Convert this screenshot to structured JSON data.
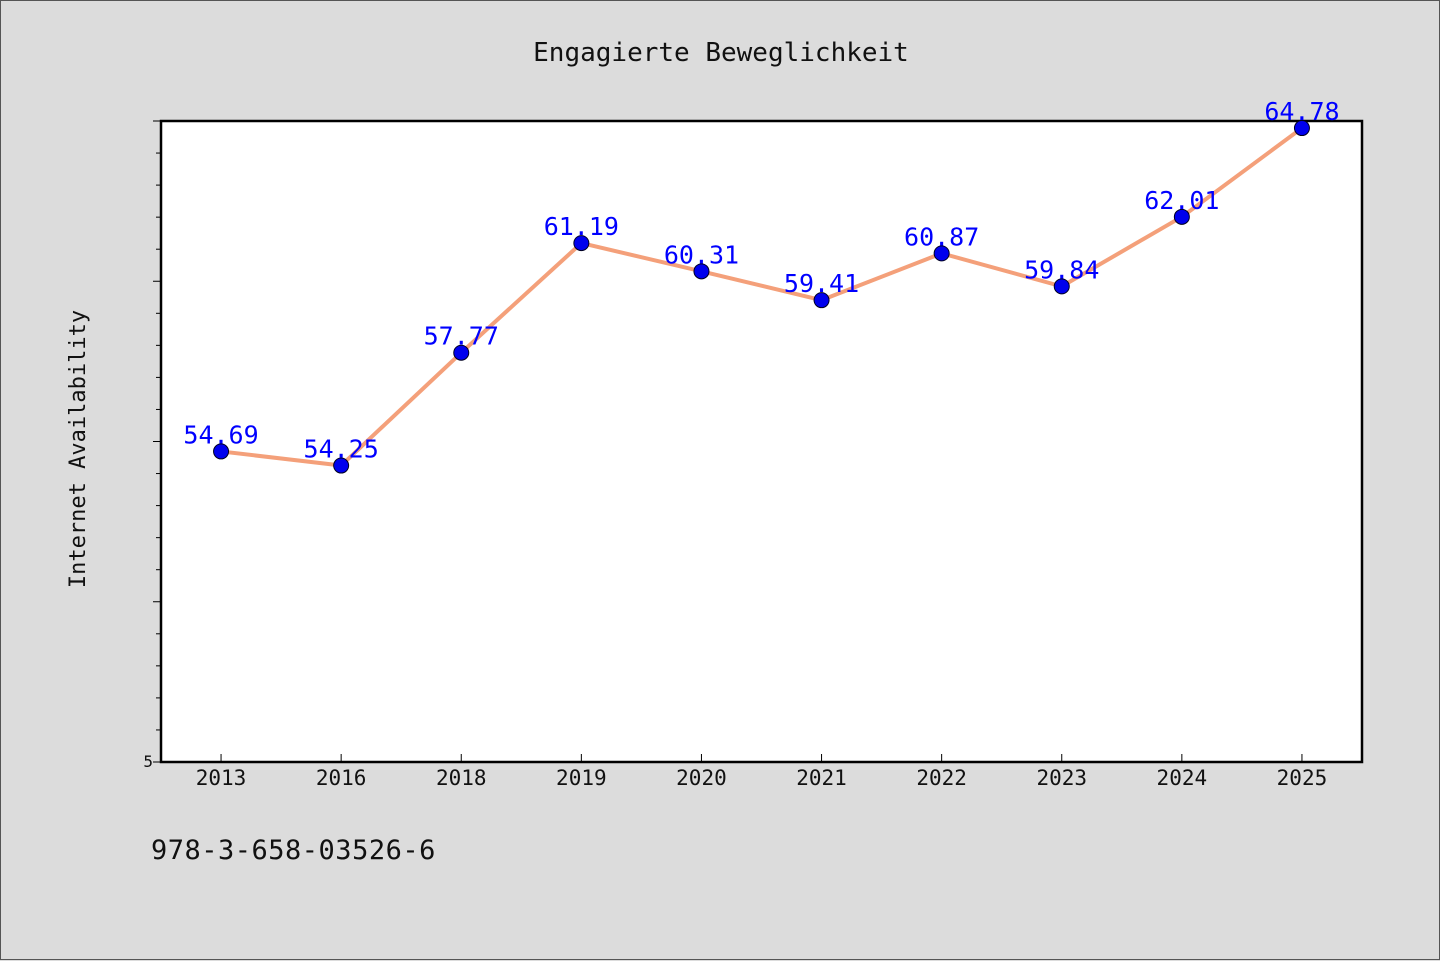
{
  "chart_data": {
    "type": "line",
    "title": "Engagierte Beweglichkeit",
    "xlabel": "",
    "ylabel": "Internet Availability",
    "categories": [
      "2013",
      "2016",
      "2018",
      "2019",
      "2020",
      "2021",
      "2022",
      "2023",
      "2024",
      "2025"
    ],
    "series": [
      {
        "values": [
          54.69,
          54.25,
          57.77,
          61.19,
          60.31,
          59.41,
          60.87,
          59.84,
          62.01,
          64.78
        ],
        "data_labels": [
          "54.69",
          "54.25",
          "57.77",
          "61.19",
          "60.31",
          "59.41",
          "60.87",
          "59.84",
          "62.01",
          "64.78"
        ]
      }
    ],
    "ylim": [
      45,
      65
    ],
    "y_tick_labels": [
      "5"
    ],
    "grid": false,
    "legend": "none",
    "colors": {
      "line": "#f4a07a",
      "marker": "#0000ee",
      "data_label": "#0000ff",
      "plot_background": "#ffffff",
      "page_background": "#dcdcdc"
    }
  },
  "footer": {
    "code": "978-3-658-03526-6"
  }
}
